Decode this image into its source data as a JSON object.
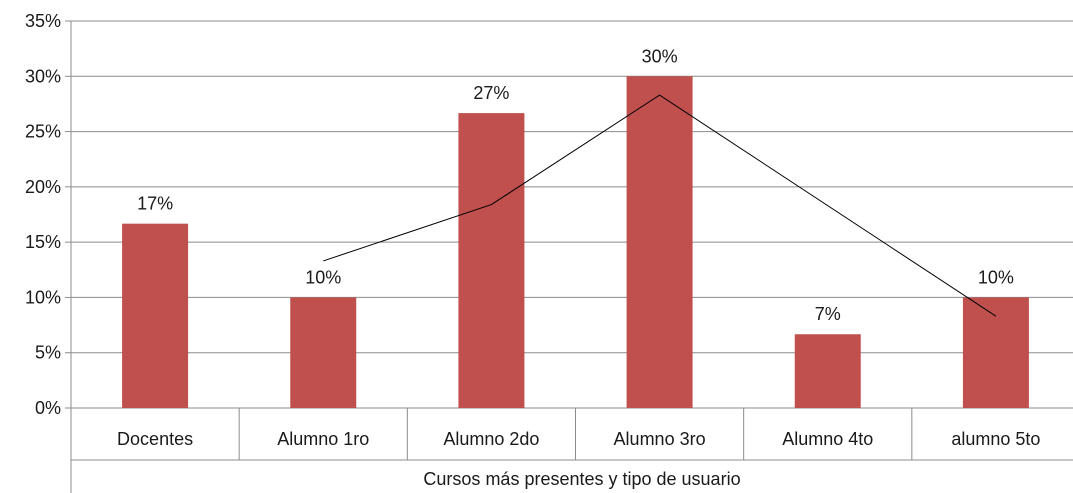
{
  "chart_data": {
    "type": "bar",
    "title": "",
    "xlabel": "Cursos más presentes y tipo de usuario",
    "ylabel": "",
    "categories": [
      "Docentes",
      "Alumno 1ro",
      "Alumno 2do",
      "Alumno 3ro",
      "Alumno 4to",
      "alumno 5to"
    ],
    "series": [
      {
        "values": [
          0.1667,
          0.1,
          0.2667,
          0.3,
          0.0667,
          0.1
        ],
        "data_labels": [
          "17%",
          "10%",
          "27%",
          "30%",
          "7%",
          "10%"
        ],
        "color": "#c0504d"
      }
    ],
    "trendline": {
      "categories": [
        "Alumno 1ro",
        "Alumno 2do",
        "Alumno 3ro",
        "alumno 5to"
      ],
      "values": [
        0.133,
        0.184,
        0.283,
        0.083
      ],
      "color": "#000000"
    },
    "ylim": [
      0,
      0.35
    ],
    "yticks": [
      0,
      0.05,
      0.1,
      0.15,
      0.2,
      0.25,
      0.3,
      0.35
    ],
    "ytick_labels": [
      "0%",
      "5%",
      "10%",
      "15%",
      "20%",
      "25%",
      "30%",
      "35%"
    ],
    "grid": true,
    "legend": "none"
  }
}
